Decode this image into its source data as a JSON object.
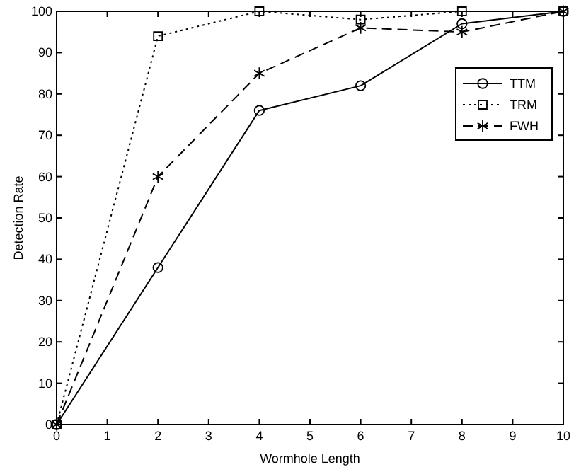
{
  "chart_data": {
    "type": "line",
    "xlabel": "Wormhole Length",
    "ylabel": "Detection Rate",
    "x": [
      0,
      2,
      4,
      6,
      8,
      10
    ],
    "xlim": [
      0,
      10
    ],
    "xticks": [
      0,
      1,
      2,
      3,
      4,
      5,
      6,
      7,
      8,
      9,
      10
    ],
    "ylim": [
      0,
      100
    ],
    "yticks": [
      0,
      10,
      20,
      30,
      40,
      50,
      60,
      70,
      80,
      90,
      100
    ],
    "grid": false,
    "legend": "top right",
    "series": [
      {
        "name": "TTM",
        "color": "#000000",
        "marker": "circle",
        "line_style": "solid",
        "values": [
          0,
          38,
          76,
          82,
          97,
          100
        ]
      },
      {
        "name": "TRM",
        "color": "#000000",
        "marker": "square",
        "line_style": "dotted",
        "values": [
          0,
          94,
          100,
          98,
          100,
          100
        ]
      },
      {
        "name": "FWH",
        "color": "#000000",
        "marker": "cross",
        "line_style": "dashed",
        "values": [
          0,
          60,
          85,
          96,
          95,
          100
        ]
      }
    ]
  }
}
